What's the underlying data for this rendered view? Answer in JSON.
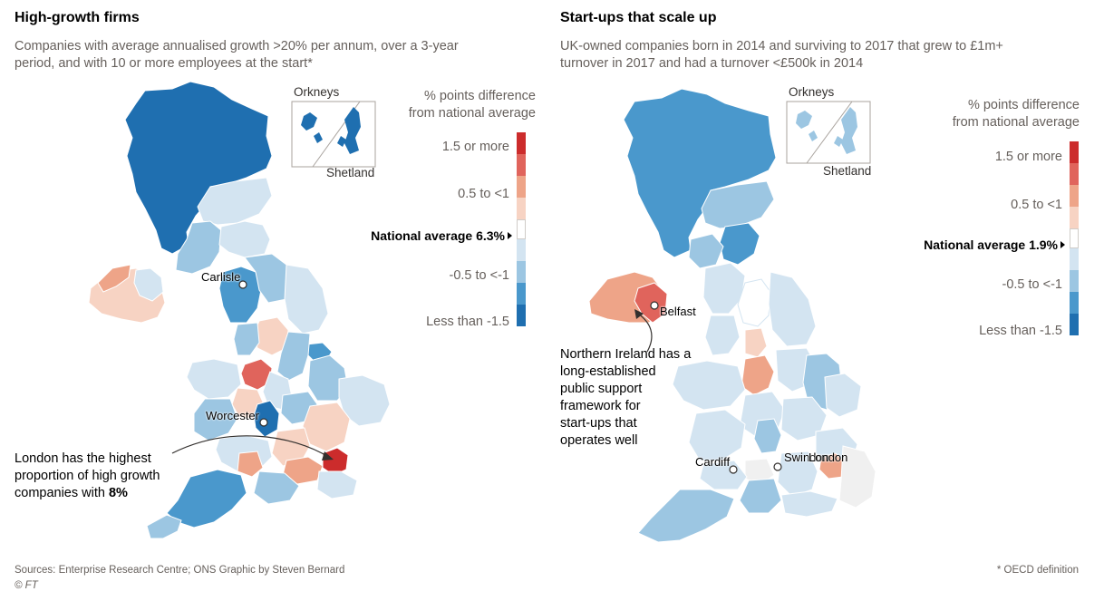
{
  "colors": {
    "scale": [
      "#1f6fb0",
      "#4a98cc",
      "#9cc6e2",
      "#d3e4f1",
      "#f0f0f0",
      "#f7d3c3",
      "#eea488",
      "#e0645c",
      "#cc2c2c"
    ],
    "text": "#33302e",
    "muted": "#66605c",
    "background": "#ffffff"
  },
  "left": {
    "title": "High-growth firms",
    "subtitle": [
      "Companies with average annualised growth >20% per annum, over a 3-year",
      "period, and with 10 or more employees at the start*"
    ],
    "legend": {
      "title": [
        "% points difference",
        "from national average"
      ],
      "labels": [
        "1.5 or more",
        "0.5 to <1",
        "-0.5 to <-1",
        "Less than -1.5"
      ],
      "national_average": "National average 6.3%"
    },
    "inset": {
      "top": "Orkneys",
      "bottom": "Shetland"
    },
    "cities": [
      "Carlisle",
      "Worcester"
    ],
    "annotation": {
      "line1": "London has the highest",
      "line2": "proportion of high growth",
      "line3_prefix": "companies with ",
      "line3_bold": "8%"
    }
  },
  "right": {
    "title": "Start-ups that scale up",
    "subtitle": [
      "UK-owned companies born in 2014 and surviving to 2017 that grew to £1m+",
      "turnover in 2017 and had a turnover <£500k in 2014"
    ],
    "legend": {
      "title": [
        "% points difference",
        "from national average"
      ],
      "labels": [
        "1.5 or more",
        "0.5 to <1",
        "-0.5 to <-1",
        "Less than -1.5"
      ],
      "national_average": "National average 1.9%"
    },
    "inset": {
      "top": "Orkneys",
      "bottom": "Shetland"
    },
    "cities": [
      "Belfast",
      "Cardiff",
      "Swindon",
      "London"
    ],
    "annotation": [
      "Northern Ireland has a",
      "long-established",
      "public support",
      "framework for",
      "start-ups that",
      "operates well"
    ]
  },
  "footer": {
    "sources": "Sources: Enterprise Research Centre; ONS   Graphic by Steven Bernard",
    "copyright": "© FT",
    "note": "* OECD definition"
  }
}
